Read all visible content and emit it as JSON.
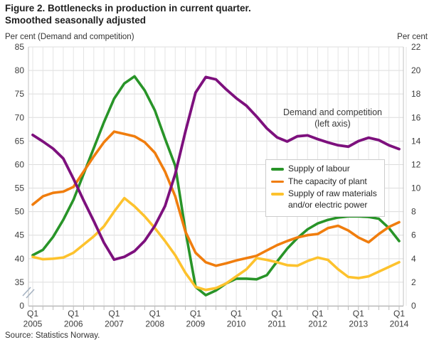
{
  "title": {
    "line1": "Figure 2. Bottlenecks in production in current quarter.",
    "line2": "Smoothed seasonally adjusted"
  },
  "axes": {
    "left_caption": "Per cent (Demand and competition)",
    "right_caption": "Per cent",
    "left_ticks": [
      "85",
      "80",
      "75",
      "70",
      "65",
      "60",
      "55",
      "50",
      "45",
      "40",
      "35",
      "0"
    ],
    "right_ticks": [
      "22",
      "20",
      "18",
      "16",
      "14",
      "12",
      "10",
      "8",
      "6",
      "4",
      "2",
      "0"
    ],
    "x_ticks": [
      {
        "q": "Q1",
        "year": "2005"
      },
      {
        "q": "Q1",
        "year": "2006"
      },
      {
        "q": "Q1",
        "year": "2007"
      },
      {
        "q": "Q1",
        "year": "2008"
      },
      {
        "q": "Q1",
        "year": "2009"
      },
      {
        "q": "Q1",
        "year": "2010"
      },
      {
        "q": "Q1",
        "year": "2011"
      },
      {
        "q": "Q1",
        "year": "2012"
      },
      {
        "q": "Q1",
        "year": "2013"
      },
      {
        "q": "Q1",
        "year": "2014"
      }
    ]
  },
  "annotation": {
    "line1": "Demand and competition",
    "line2": "(left axis)"
  },
  "legend": {
    "items": [
      {
        "label": "Supply of labour",
        "color": "#289428"
      },
      {
        "label": "The capacity of plant",
        "color": "#f07d0d"
      },
      {
        "label": "Supply of raw materials",
        "label2": "and/or electric power",
        "color": "#fdc22d"
      }
    ]
  },
  "source": "Source: Statistics Norway.",
  "colors": {
    "demand_purple": "#7d107d",
    "labour_green": "#289428",
    "capacity_orange": "#f07d0d",
    "materials_yellow": "#fdc22d",
    "grid": "#dcdcdc",
    "grid_vertical": "#e4e4e4",
    "border": "#c2c2c2",
    "axis_band": "#bdbdbd",
    "break_mark": "#a6b3c2"
  },
  "chart_data": {
    "type": "line",
    "x_unit": "quarter",
    "x_start": "2005 Q1",
    "x_end": "2014 Q1",
    "n_points": 37,
    "x_year_labels": [
      "Q1 2005",
      "Q1 2006",
      "Q1 2007",
      "Q1 2008",
      "Q1 2009",
      "Q1 2010",
      "Q1 2011",
      "Q1 2012",
      "Q1 2013",
      "Q1 2014"
    ],
    "title": "Figure 2. Bottlenecks in production in current quarter. Smoothed seasonally adjusted",
    "left_axis": {
      "label": "Per cent (Demand and competition)",
      "range": [
        35,
        85
      ],
      "tick_step": 5,
      "axis_break_to_zero": true
    },
    "right_axis": {
      "label": "Per cent",
      "range": [
        0,
        22
      ],
      "tick_step": 2
    },
    "grid": true,
    "legend_position": "right-middle",
    "series": [
      {
        "name": "Demand and competition (left axis)",
        "axis": "left",
        "color": "#7d107d",
        "values": [
          66.3,
          64.9,
          63.4,
          61.3,
          57.0,
          52.4,
          48.0,
          43.4,
          39.8,
          40.4,
          41.6,
          43.8,
          47.0,
          51.2,
          58.0,
          67.0,
          75.3,
          78.6,
          78.1,
          76.0,
          74.1,
          72.5,
          70.2,
          67.7,
          65.8,
          64.9,
          66.0,
          66.2,
          65.4,
          64.7,
          64.1,
          63.8,
          65.0,
          65.7,
          65.2,
          64.1,
          63.3
        ]
      },
      {
        "name": "Supply of labour",
        "axis": "right",
        "color": "#289428",
        "values": [
          4.3,
          4.75,
          5.85,
          7.3,
          9.0,
          11.2,
          13.4,
          15.6,
          17.6,
          18.9,
          19.5,
          18.3,
          16.6,
          14.2,
          11.9,
          6.4,
          1.6,
          0.9,
          1.3,
          1.9,
          2.3,
          2.3,
          2.25,
          2.6,
          3.75,
          4.85,
          5.75,
          6.5,
          7.0,
          7.3,
          7.5,
          7.6,
          7.6,
          7.55,
          7.4,
          6.6,
          5.5
        ]
      },
      {
        "name": "The capacity of plant",
        "axis": "right",
        "color": "#f07d0d",
        "values": [
          8.6,
          9.3,
          9.6,
          9.7,
          10.1,
          11.4,
          12.7,
          13.9,
          14.8,
          14.6,
          14.4,
          13.9,
          13.0,
          11.4,
          9.3,
          6.3,
          4.5,
          3.7,
          3.4,
          3.6,
          3.85,
          4.05,
          4.25,
          4.7,
          5.15,
          5.5,
          5.8,
          6.0,
          6.1,
          6.6,
          6.8,
          6.4,
          5.8,
          5.4,
          6.1,
          6.7,
          7.1
        ]
      },
      {
        "name": "Supply of raw materials and/or electric power",
        "axis": "right",
        "color": "#fdc22d",
        "values": [
          4.15,
          3.95,
          4.0,
          4.1,
          4.5,
          5.2,
          5.9,
          6.75,
          8.0,
          9.15,
          8.45,
          7.6,
          6.6,
          5.5,
          4.3,
          2.8,
          1.6,
          1.35,
          1.5,
          1.9,
          2.5,
          3.1,
          4.05,
          3.9,
          3.7,
          3.45,
          3.4,
          3.8,
          4.1,
          3.9,
          3.1,
          2.45,
          2.35,
          2.5,
          2.9,
          3.3,
          3.7
        ]
      }
    ]
  }
}
